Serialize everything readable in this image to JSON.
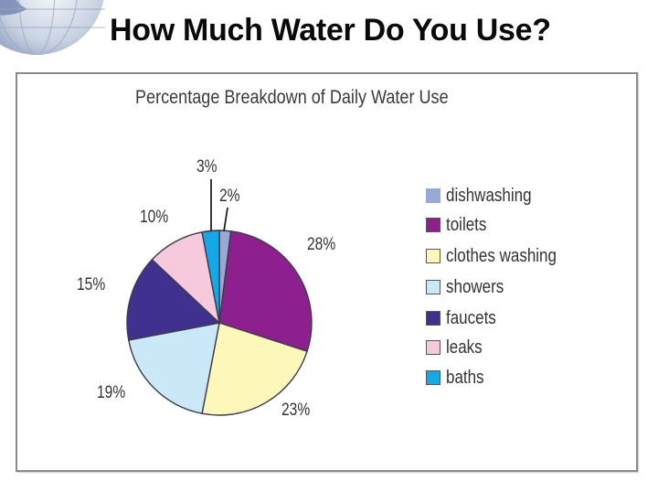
{
  "slide": {
    "title": "How Much Water Do You Use?",
    "logo_icon": "globe-icon"
  },
  "chart_data": {
    "type": "pie",
    "title": "Percentage Breakdown of Daily Water Use",
    "categories": [
      "dishwashing",
      "toilets",
      "clothes washing",
      "showers",
      "faucets",
      "leaks",
      "baths"
    ],
    "values": [
      2,
      28,
      23,
      19,
      15,
      10,
      3
    ],
    "unit": "%",
    "colors": [
      "#98a9d8",
      "#8e1f8e",
      "#fdf7b9",
      "#cbe8f8",
      "#40308f",
      "#f7c9dc",
      "#14a9e6"
    ],
    "labels": [
      "2%",
      "28%",
      "23%",
      "19%",
      "15%",
      "10%",
      "3%"
    ],
    "start_angle": "12 o'clock",
    "direction": "clockwise",
    "legend_position": "right"
  }
}
